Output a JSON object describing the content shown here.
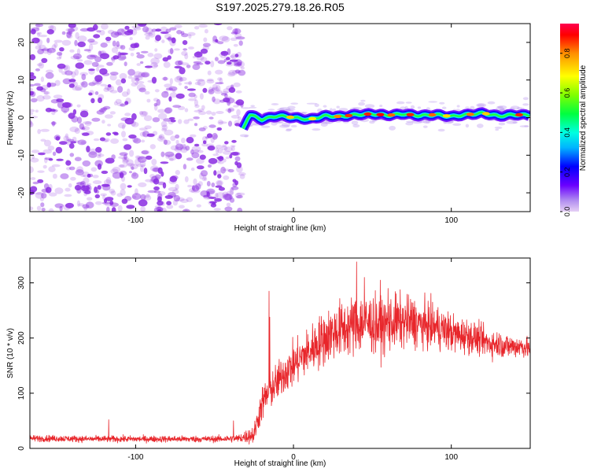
{
  "figure": {
    "title": "S197.2025.279.18.26.R05"
  },
  "colors": {
    "noise": "#8a2be2",
    "snr_line": "#e8262b",
    "axis": "#000000"
  },
  "chart_data": [
    {
      "type": "heatmap",
      "name": "spectrogram",
      "xlabel": "Height of straight line (km)",
      "ylabel": "Frequency (Hz)",
      "xlim": [
        -167,
        150
      ],
      "ylim": [
        -25,
        25
      ],
      "xticks": [
        -100,
        0,
        100
      ],
      "yticks": [
        -20,
        -10,
        0,
        10,
        20
      ],
      "grid": false,
      "signal_onset_km": -32,
      "noise_region_km": [
        -167,
        -32
      ],
      "ridge_frequency_hz": [
        [
          -32,
          -3
        ],
        [
          -30,
          -1
        ],
        [
          -28,
          0.8
        ],
        [
          -20,
          -0.5
        ],
        [
          -10,
          0.5
        ],
        [
          0,
          0
        ],
        [
          10,
          -0.5
        ],
        [
          20,
          0.5
        ],
        [
          30,
          0.3
        ],
        [
          40,
          0.8
        ],
        [
          50,
          1.0
        ],
        [
          60,
          0.6
        ],
        [
          70,
          1.0
        ],
        [
          80,
          0.5
        ],
        [
          90,
          0.8
        ],
        [
          100,
          0.3
        ],
        [
          110,
          0.8
        ],
        [
          120,
          1.2
        ],
        [
          130,
          0.4
        ],
        [
          140,
          0.8
        ],
        [
          150,
          0.6
        ]
      ],
      "colorbar": {
        "label": "Normalized spectral amplitude",
        "range": [
          0,
          0.95
        ],
        "ticks": [
          "0.0",
          "0.2",
          "0.4",
          "0.6",
          "0.8"
        ],
        "colormap": "rainbow"
      }
    },
    {
      "type": "line",
      "name": "snr",
      "xlabel": "Height of straight line (km)",
      "ylabel": "SNR (10 * v/v)",
      "xlim": [
        -167,
        150
      ],
      "ylim": [
        0,
        345
      ],
      "xticks": [
        -100,
        0,
        100
      ],
      "yticks": [
        0,
        100,
        200,
        300
      ],
      "grid": false,
      "series": [
        {
          "color": "#e8262b",
          "x": [
            -167,
            -150,
            -130,
            -110,
            -90,
            -70,
            -50,
            -35,
            -25,
            -22,
            -20,
            -15,
            -10,
            -5,
            0,
            5,
            10,
            15,
            20,
            25,
            30,
            35,
            40,
            45,
            50,
            55,
            60,
            65,
            70,
            75,
            80,
            85,
            90,
            95,
            100,
            105,
            110,
            115,
            120,
            125,
            130,
            135,
            140,
            145,
            150
          ],
          "mean": [
            18,
            18,
            17,
            17,
            17,
            17,
            17,
            18,
            25,
            60,
            80,
            105,
            120,
            140,
            150,
            165,
            175,
            190,
            200,
            210,
            215,
            220,
            225,
            228,
            225,
            220,
            225,
            230,
            228,
            230,
            225,
            222,
            220,
            215,
            210,
            205,
            205,
            200,
            195,
            190,
            190,
            185,
            185,
            185,
            180
          ],
          "spread": [
            10,
            10,
            10,
            10,
            10,
            10,
            10,
            12,
            30,
            45,
            55,
            60,
            60,
            65,
            70,
            70,
            75,
            80,
            85,
            85,
            90,
            90,
            95,
            95,
            90,
            85,
            85,
            85,
            80,
            80,
            75,
            70,
            70,
            65,
            60,
            55,
            55,
            50,
            45,
            45,
            40,
            40,
            35,
            35,
            30
          ],
          "peaks": [
            [
              -38,
              50
            ],
            [
              -117,
              52
            ],
            [
              -15.5,
              285
            ],
            [
              40,
              338
            ],
            [
              45,
              310
            ],
            [
              55,
              305
            ],
            [
              60,
              290
            ],
            [
              -15,
              238
            ]
          ]
        }
      ]
    }
  ]
}
